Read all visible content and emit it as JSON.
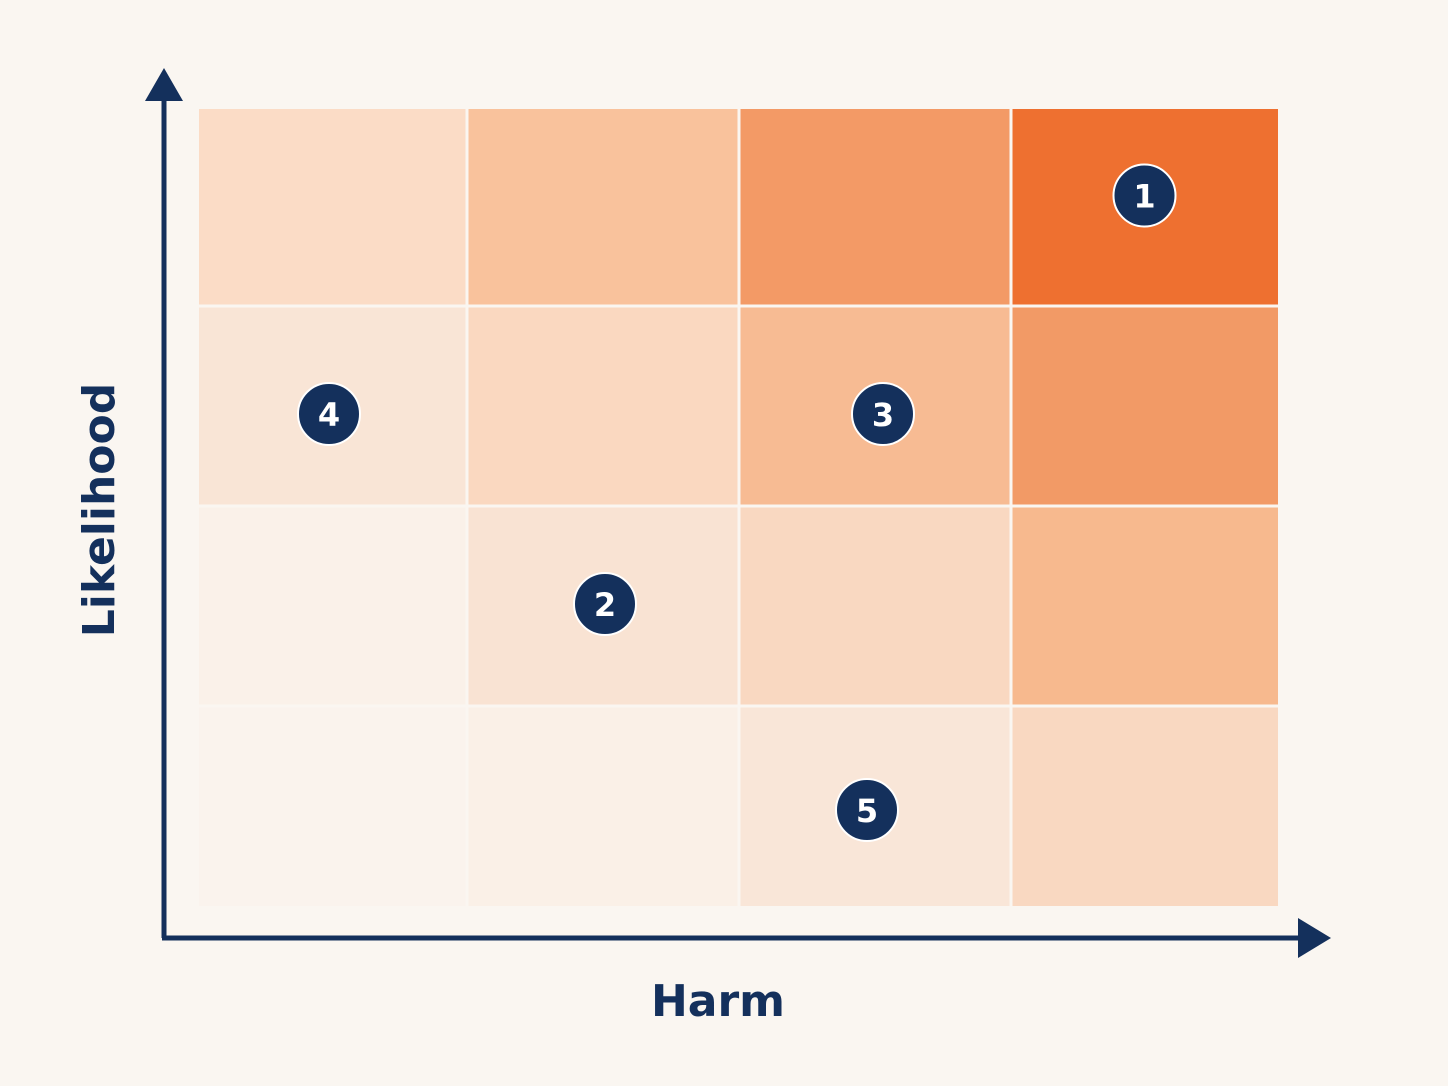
{
  "chart_data": {
    "type": "heatmap",
    "xlabel": "Harm",
    "ylabel": "Likelihood",
    "columns": 4,
    "rows": 4,
    "grid": true,
    "cell_colors": [
      [
        "#fbdcc6",
        "#f9c29c",
        "#f39a66",
        "#ee7030"
      ],
      [
        "#f9e5d6",
        "#fad8c0",
        "#f7bb93",
        "#f29a66"
      ],
      [
        "#faf1e9",
        "#f9e3d3",
        "#f9d8c1",
        "#f7b98e"
      ],
      [
        "#faf3ed",
        "#faf0e7",
        "#f9e6d8",
        "#f9d8c1"
      ]
    ],
    "markers": [
      {
        "label": "1",
        "harm": 4,
        "likelihood": 4
      },
      {
        "label": "4",
        "harm": 1,
        "likelihood": 3
      },
      {
        "label": "3",
        "harm": 3,
        "likelihood": 3
      },
      {
        "label": "2",
        "harm": 2,
        "likelihood": 2
      },
      {
        "label": "5",
        "harm": 3,
        "likelihood": 1
      }
    ],
    "colors": {
      "axis": "#14305c",
      "marker_fill": "#14305c",
      "marker_text": "#ffffff",
      "grid_line": "#faf6f1"
    }
  }
}
